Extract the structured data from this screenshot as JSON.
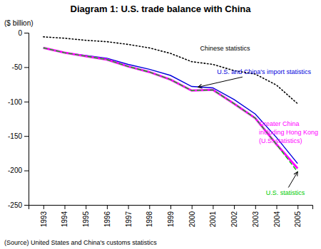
{
  "chart_data": {
    "type": "line",
    "title": "Diagram 1: U.S. trade balance with China",
    "y_label": "($ billion)",
    "source": "(Source) United States and China's customs statistics",
    "x": [
      1993,
      1994,
      1995,
      1996,
      1997,
      1998,
      1999,
      2000,
      2001,
      2002,
      2003,
      2004,
      2005
    ],
    "xlim": [
      1992.3,
      2005.7
    ],
    "xticks": [
      1993,
      1994,
      1995,
      1996,
      1997,
      1998,
      1999,
      2000,
      2001,
      2002,
      2003,
      2004,
      2005
    ],
    "ylim": [
      -250,
      0
    ],
    "yticks": [
      0,
      -50,
      -100,
      -150,
      -200,
      -250
    ],
    "grid": false,
    "series": [
      {
        "color": "#000000",
        "line_style": "dotted",
        "values": [
          -6,
          -8,
          -11,
          -13,
          -17,
          -22,
          -30,
          -42,
          -46,
          -55,
          -60,
          -76,
          -103
        ]
      },
      {
        "color": "#0000dd",
        "line_style": "solid",
        "values": [
          -22,
          -29,
          -33,
          -37,
          -46,
          -53,
          -62,
          -78,
          -80,
          -97,
          -118,
          -152,
          -190
        ]
      },
      {
        "color": "#ff00ff",
        "line_style": "solid",
        "values": [
          -22,
          -29,
          -34,
          -39,
          -49,
          -57,
          -68,
          -84,
          -83,
          -103,
          -124,
          -162,
          -197
        ]
      },
      {
        "color": "#00cc00",
        "line_style": "dashed",
        "values": [
          -22,
          -29,
          -34,
          -39,
          -49,
          -57,
          -68,
          -84,
          -83,
          -103,
          -124,
          -162,
          -202
        ]
      }
    ],
    "annotations": [
      {
        "text": "Chinese statistics",
        "x": 2000.4,
        "y": -23,
        "color": "#000000"
      },
      {
        "text": "U.S. and China's import statistics",
        "x": 2001.2,
        "y": -57,
        "color": "#0000dd",
        "arrow_to": [
          2000.3,
          -79
        ]
      },
      {
        "text": "Greater China\nincluding Hong Kong\n(U.S. statistics)",
        "x": 2003.6,
        "y": -128,
        "color": "#ff00ff"
      },
      {
        "text": "U.S. statistics",
        "x": 2003.5,
        "y": -232,
        "color": "#00cc00",
        "arrow_to": [
          2005.0,
          -202
        ]
      }
    ]
  }
}
